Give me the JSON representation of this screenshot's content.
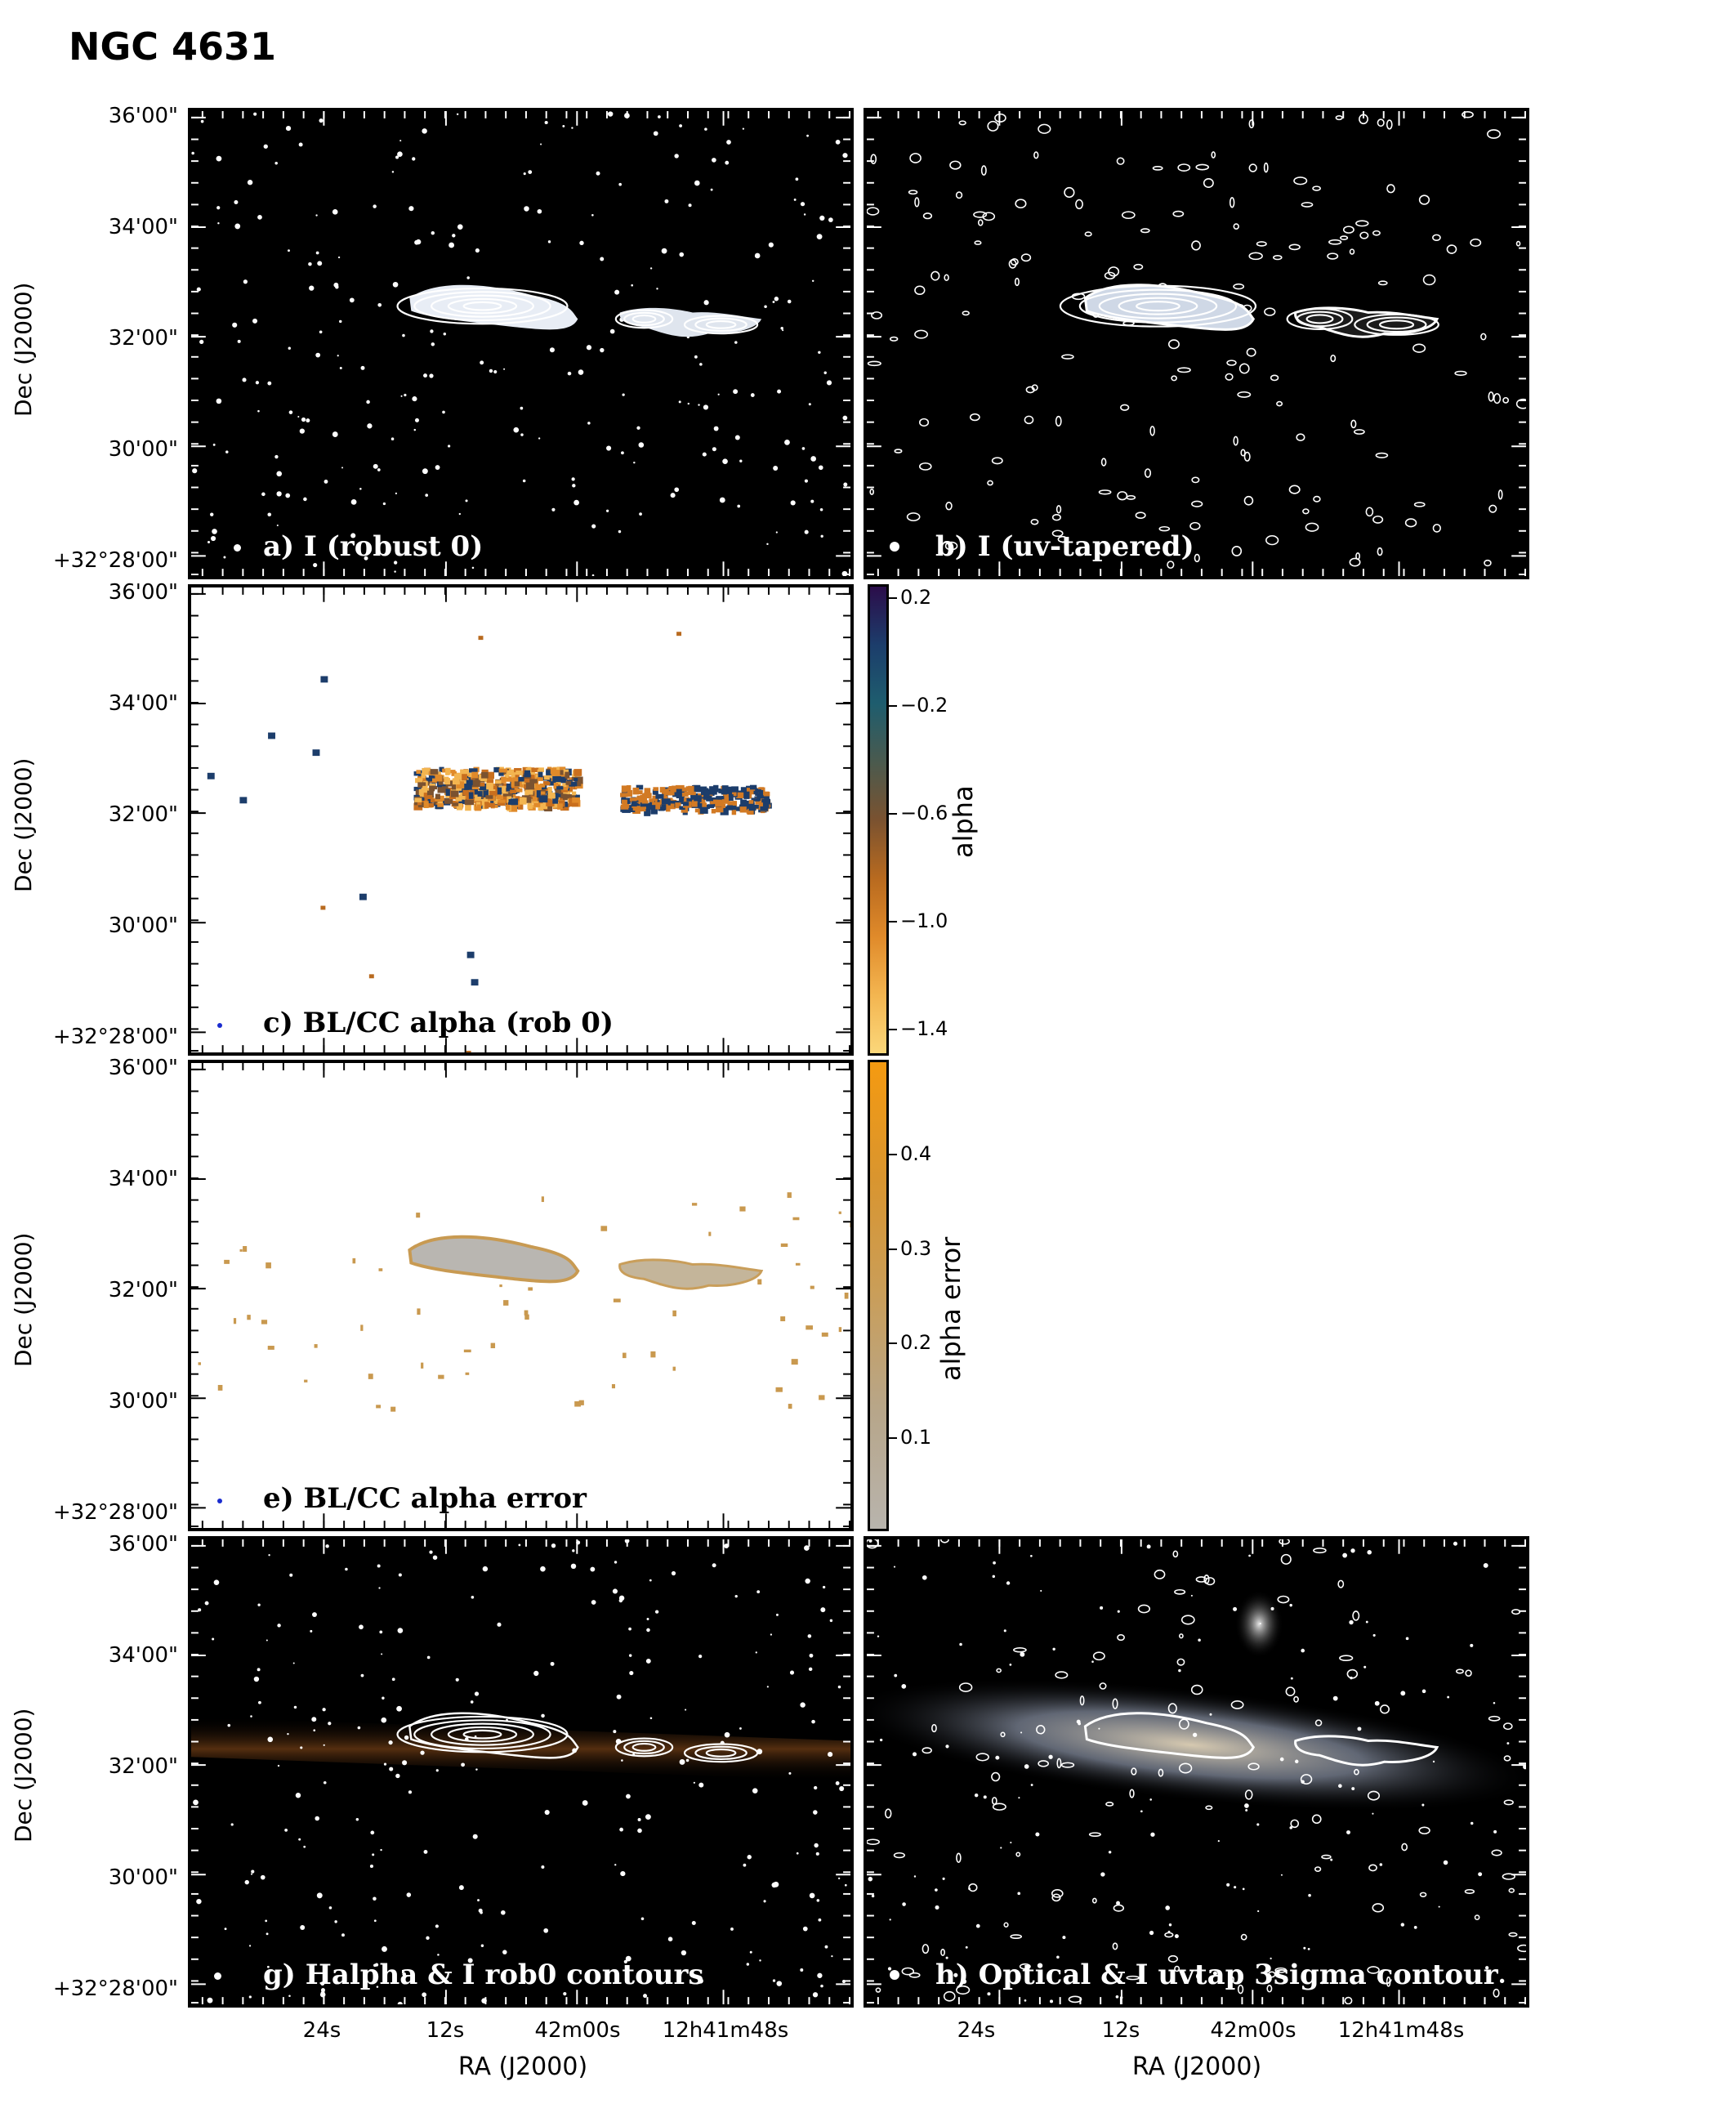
{
  "figure": {
    "title": "NGC 4631",
    "y_axis_title": "Dec (J2000)",
    "x_axis_title": "RA (J2000)",
    "dec_tick_labels": [
      "36'00\"",
      "34'00\"",
      "32'00\"",
      "30'00\"",
      "+32°28'00\""
    ],
    "ra_tick_labels": [
      "24s",
      "12s",
      "42m00s",
      "12h41m48s"
    ]
  },
  "panels": {
    "a": {
      "label": "a) I (robust 0)",
      "background": "#000000"
    },
    "b": {
      "label": "b) I (uv-tapered)",
      "background": "#000000"
    },
    "c": {
      "label": "c) BL/CC alpha (rob 0)",
      "background": "#ffffff"
    },
    "e": {
      "label": "e)  BL/CC alpha error",
      "background": "#ffffff"
    },
    "g": {
      "label": "g) Halpha & I rob0 contours",
      "background": "#000000"
    },
    "h": {
      "label": "h) Optical & I uvtap 3sigma contour",
      "background": "#000000"
    }
  },
  "colorbars": {
    "alpha": {
      "title": "alpha",
      "ticks": [
        "0.2",
        "−0.2",
        "−0.6",
        "−1.0",
        "−1.4"
      ],
      "range": [
        -1.5,
        0.25
      ],
      "colors_top_to_bottom": [
        "#2b0d4a",
        "#1c3d6b",
        "#1e5d6e",
        "#4a5a4e",
        "#7a5230",
        "#b86a1f",
        "#e08a2a",
        "#f3b550",
        "#fbd77a"
      ]
    },
    "alpha_error": {
      "title": "alpha error",
      "ticks": [
        "0.4",
        "0.3",
        "0.2",
        "0.1"
      ],
      "range": [
        0.0,
        0.5
      ],
      "colors_top_to_bottom": [
        "#f59a10",
        "#d9952f",
        "#c99e5a",
        "#b7a68a",
        "#b8b4ad"
      ]
    }
  }
}
